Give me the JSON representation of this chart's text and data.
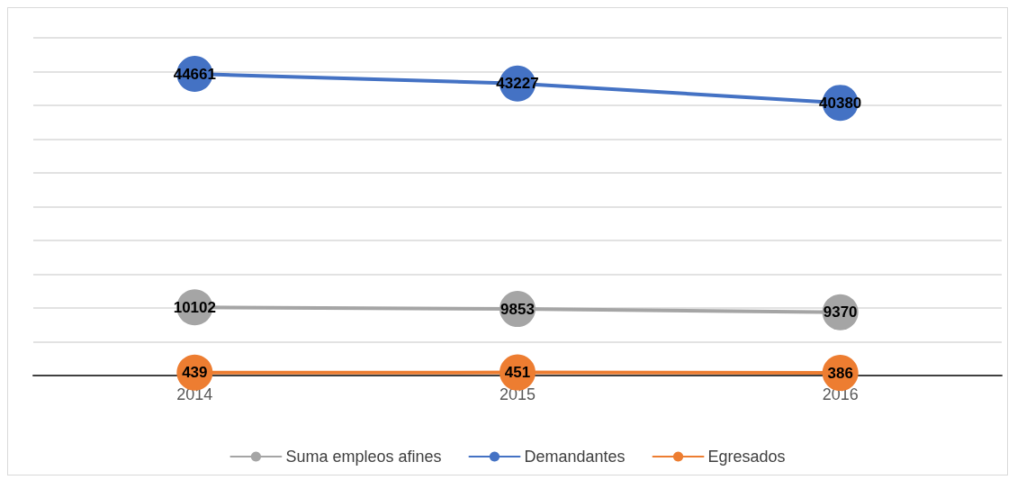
{
  "chart_data": {
    "type": "line",
    "categories": [
      "2014",
      "2015",
      "2016"
    ],
    "series": [
      {
        "name": "Suma empleos afines",
        "color": "#a5a5a5",
        "values": [
          10102,
          9853,
          9370
        ]
      },
      {
        "name": "Demandantes",
        "color": "#4472c4",
        "values": [
          44661,
          43227,
          40380
        ]
      },
      {
        "name": "Egresados",
        "color": "#ed7d31",
        "values": [
          439,
          451,
          386
        ]
      }
    ],
    "ylim": [
      0,
      50000
    ],
    "yticks": [
      {
        "value": 0,
        "label": null
      },
      {
        "value": 5000,
        "label": null
      },
      {
        "value": 10000,
        "label": null
      },
      {
        "value": 15000,
        "label": null
      },
      {
        "value": 20000,
        "label": null
      },
      {
        "value": 25000,
        "label": null
      },
      {
        "value": 30000,
        "label": null
      },
      {
        "value": 35000,
        "label": null
      },
      {
        "value": 40000,
        "label": null
      },
      {
        "value": 45000,
        "label": null
      },
      {
        "value": 50000,
        "label": null
      }
    ],
    "tick_labels": "x",
    "grid": "y",
    "legend": "bottom",
    "marker": "circle",
    "line_style": "solid",
    "data_labels": true
  }
}
